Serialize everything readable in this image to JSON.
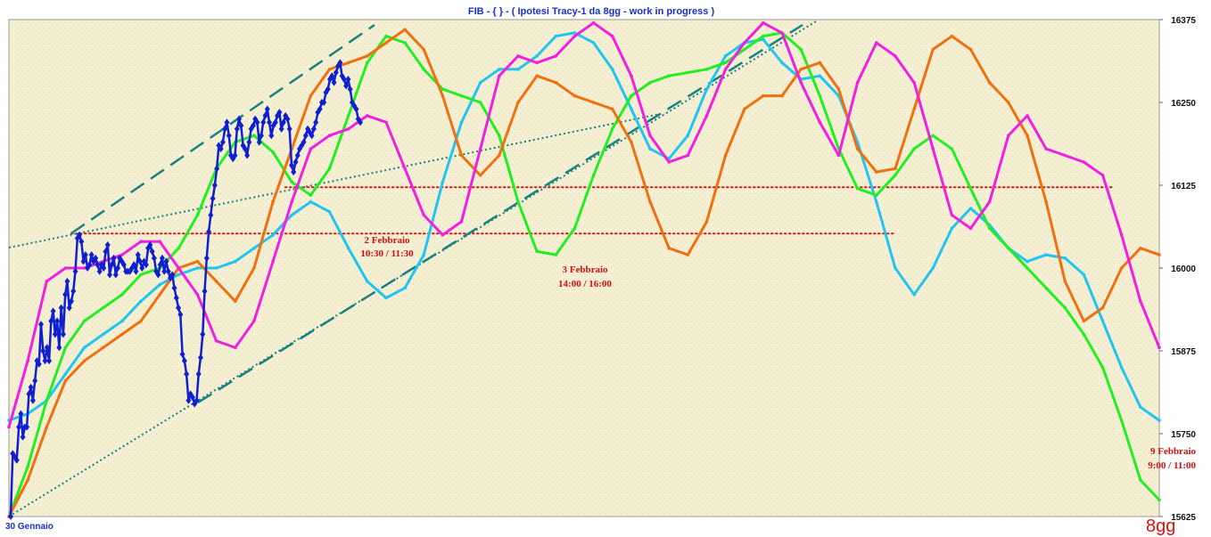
{
  "chart_data": {
    "type": "line",
    "title": "FIB  -  { } - ( Ipotesi Tracy-1 da 8gg - work in progress )",
    "ylim": [
      15625,
      16375
    ],
    "y_ticks": [
      15625,
      15750,
      15875,
      16000,
      16125,
      16250,
      16375
    ],
    "x_label_start": "30 Gennaio",
    "period_label": "8gg",
    "colors": {
      "price": "#1020d0",
      "green": "#22ee22",
      "orange": "#f07010",
      "magenta": "#f020e0",
      "cyan": "#22c4f0",
      "trend": "#1a8080",
      "levels": "#e01010",
      "background": "#f5f0d4"
    },
    "horizontal_levels": [
      16122,
      16052
    ],
    "annotations": [
      {
        "line1": "2 Febbraio",
        "line2": "10:30 / 11:30"
      },
      {
        "line1": "3 Febbraio",
        "line2": "14:00 / 16:00"
      },
      {
        "line1": "9 Febbraio",
        "line2": "9:00 / 11:00"
      }
    ],
    "series": [
      {
        "color_key": "price",
        "values": [
          15625,
          15720,
          15715,
          15710,
          15760,
          15780,
          15745,
          15760,
          15760,
          15810,
          15820,
          15800,
          15830,
          15860,
          15855,
          15915,
          15875,
          15860,
          15880,
          15860,
          15920,
          15935,
          15900,
          15920,
          15880,
          15940,
          15900,
          15960,
          15980,
          15940,
          15950,
          15965,
          15995,
          16045,
          16050,
          16040,
          16010,
          16020,
          16000,
          16005,
          16020,
          16010,
          16015,
          16005,
          15995,
          16005,
          16000,
          16025,
          16035,
          15990,
          16005,
          16015,
          15990,
          16000,
          16015,
          16010,
          16005,
          15995,
          15995,
          15995,
          16000,
          16005,
          15995,
          16020,
          16010,
          16000,
          16010,
          16005,
          16030,
          16035,
          16025,
          16015,
          15995,
          15990,
          16005,
          16015,
          15995,
          16010,
          15995,
          15985,
          15990,
          15970,
          15955,
          15940,
          15930,
          15870,
          15860,
          15840,
          15800,
          15810,
          15805,
          15795,
          15800,
          15840,
          15865,
          15900,
          15965,
          16015,
          16055,
          16080,
          16105,
          16125,
          16150,
          16185,
          16180,
          16190,
          16210,
          16220,
          16200,
          16170,
          16165,
          16170,
          16210,
          16225,
          16215,
          16185,
          16180,
          16170,
          16190,
          16210,
          16215,
          16225,
          16220,
          16190,
          16200,
          16220,
          16230,
          16240,
          16220,
          16200,
          16215,
          16220,
          16230,
          16235,
          16210,
          16220,
          16230,
          16225,
          16210,
          16155,
          16145,
          16160,
          16170,
          16180,
          16185,
          16190,
          16200,
          16210,
          16205,
          16200,
          16210,
          16220,
          16235,
          16240,
          16250,
          16250,
          16265,
          16270,
          16285,
          16290,
          16280,
          16295,
          16305,
          16310,
          16290,
          16285,
          16275,
          16285,
          16270,
          16250,
          16245,
          16240,
          16225,
          16220
        ]
      },
      {
        "color_key": "cyan",
        "values": [
          15770,
          15780,
          15800,
          15840,
          15880,
          15900,
          15920,
          15950,
          15975,
          15990,
          16000,
          16000,
          16010,
          16030,
          16050,
          16080,
          16100,
          16085,
          16030,
          15980,
          15955,
          15970,
          16020,
          16130,
          16220,
          16280,
          16300,
          16300,
          16320,
          16350,
          16355,
          16340,
          16300,
          16240,
          16180,
          16165,
          16200,
          16270,
          16320,
          16340,
          16345,
          16310,
          16285,
          16290,
          16260,
          16190,
          16100,
          16000,
          15960,
          16000,
          16060,
          16090,
          16065,
          16030,
          16010,
          16020,
          16015,
          15990,
          15920,
          15850,
          15790,
          15770
        ]
      },
      {
        "color_key": "green",
        "values": [
          15625,
          15700,
          15800,
          15880,
          15920,
          15940,
          15960,
          15990,
          16000,
          16030,
          16080,
          16150,
          16190,
          16200,
          16175,
          16130,
          16110,
          16150,
          16230,
          16310,
          16350,
          16340,
          16300,
          16270,
          16260,
          16250,
          16200,
          16100,
          16025,
          16020,
          16060,
          16140,
          16210,
          16260,
          16280,
          16290,
          16295,
          16300,
          16310,
          16330,
          16350,
          16355,
          16330,
          16260,
          16180,
          16120,
          16110,
          16140,
          16180,
          16200,
          16180,
          16120,
          16060,
          16030,
          16000,
          15970,
          15940,
          15900,
          15850,
          15770,
          15680,
          15650
        ]
      },
      {
        "color_key": "orange",
        "values": [
          15625,
          15680,
          15760,
          15830,
          15860,
          15880,
          15900,
          15920,
          15960,
          16000,
          16010,
          15980,
          15950,
          16000,
          16100,
          16180,
          16260,
          16300,
          16310,
          16320,
          16340,
          16360,
          16330,
          16260,
          16170,
          16140,
          16170,
          16250,
          16290,
          16280,
          16260,
          16250,
          16240,
          16190,
          16100,
          16030,
          16020,
          16070,
          16170,
          16240,
          16260,
          16260,
          16300,
          16310,
          16270,
          16180,
          16145,
          16150,
          16240,
          16330,
          16350,
          16330,
          16280,
          16250,
          16200,
          16100,
          15980,
          15920,
          15940,
          16000,
          16030,
          16020
        ]
      },
      {
        "color_key": "magenta",
        "values": [
          15760,
          15860,
          15980,
          16000,
          16000,
          16010,
          16020,
          16040,
          16040,
          16000,
          15960,
          15890,
          15880,
          15920,
          16010,
          16100,
          16180,
          16200,
          16210,
          16230,
          16220,
          16150,
          16080,
          16050,
          16070,
          16180,
          16290,
          16320,
          16310,
          16320,
          16350,
          16370,
          16350,
          16290,
          16200,
          16160,
          16170,
          16230,
          16300,
          16340,
          16370,
          16355,
          16280,
          16220,
          16170,
          16280,
          16340,
          16320,
          16280,
          16180,
          16080,
          16060,
          16100,
          16200,
          16230,
          16180,
          16170,
          16160,
          16140,
          16050,
          15950,
          15880
        ]
      }
    ]
  }
}
